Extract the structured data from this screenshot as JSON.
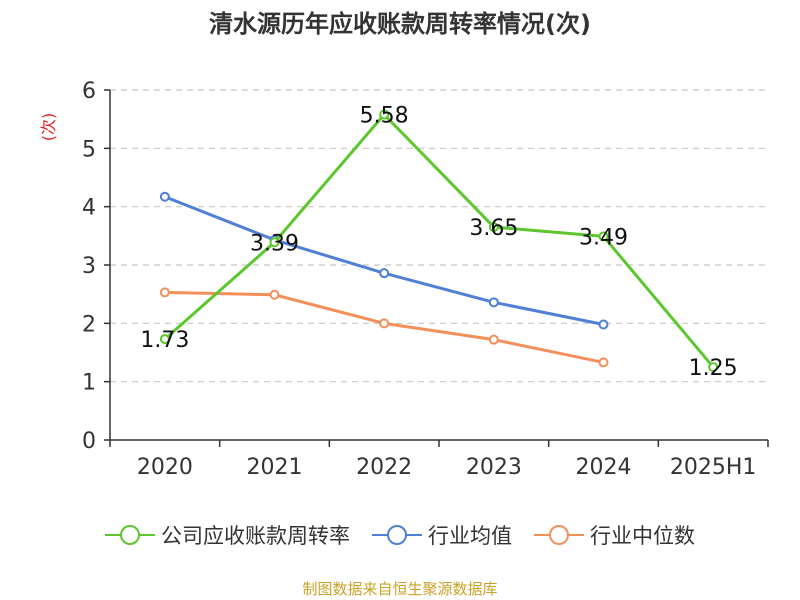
{
  "title": "清水源历年应收账款周转率情况(次)",
  "source": "制图数据来自恒生聚源数据库",
  "chart_data": {
    "type": "line",
    "categories": [
      "2020",
      "2021",
      "2022",
      "2023",
      "2024",
      "2025H1"
    ],
    "y_unit_label": "(次)",
    "ylim": [
      0,
      6
    ],
    "yticks": [
      "0",
      "1",
      "2",
      "3",
      "4",
      "5",
      "6"
    ],
    "grid": true,
    "legend_position": "bottom",
    "series": [
      {
        "name": "公司应收账款周转率",
        "color": "#5cc72c",
        "values": [
          1.73,
          3.39,
          5.58,
          3.65,
          3.49,
          1.25
        ],
        "labels": [
          "1.73",
          "3.39",
          "5.58",
          "3.65",
          "3.49",
          "1.25"
        ]
      },
      {
        "name": "行业均值",
        "color": "#4f7fd6",
        "values": [
          4.17,
          3.43,
          2.86,
          2.36,
          1.98,
          null
        ]
      },
      {
        "name": "行业中位数",
        "color": "#f3905a",
        "values": [
          2.53,
          2.49,
          2.0,
          1.72,
          1.33,
          null
        ]
      }
    ]
  }
}
